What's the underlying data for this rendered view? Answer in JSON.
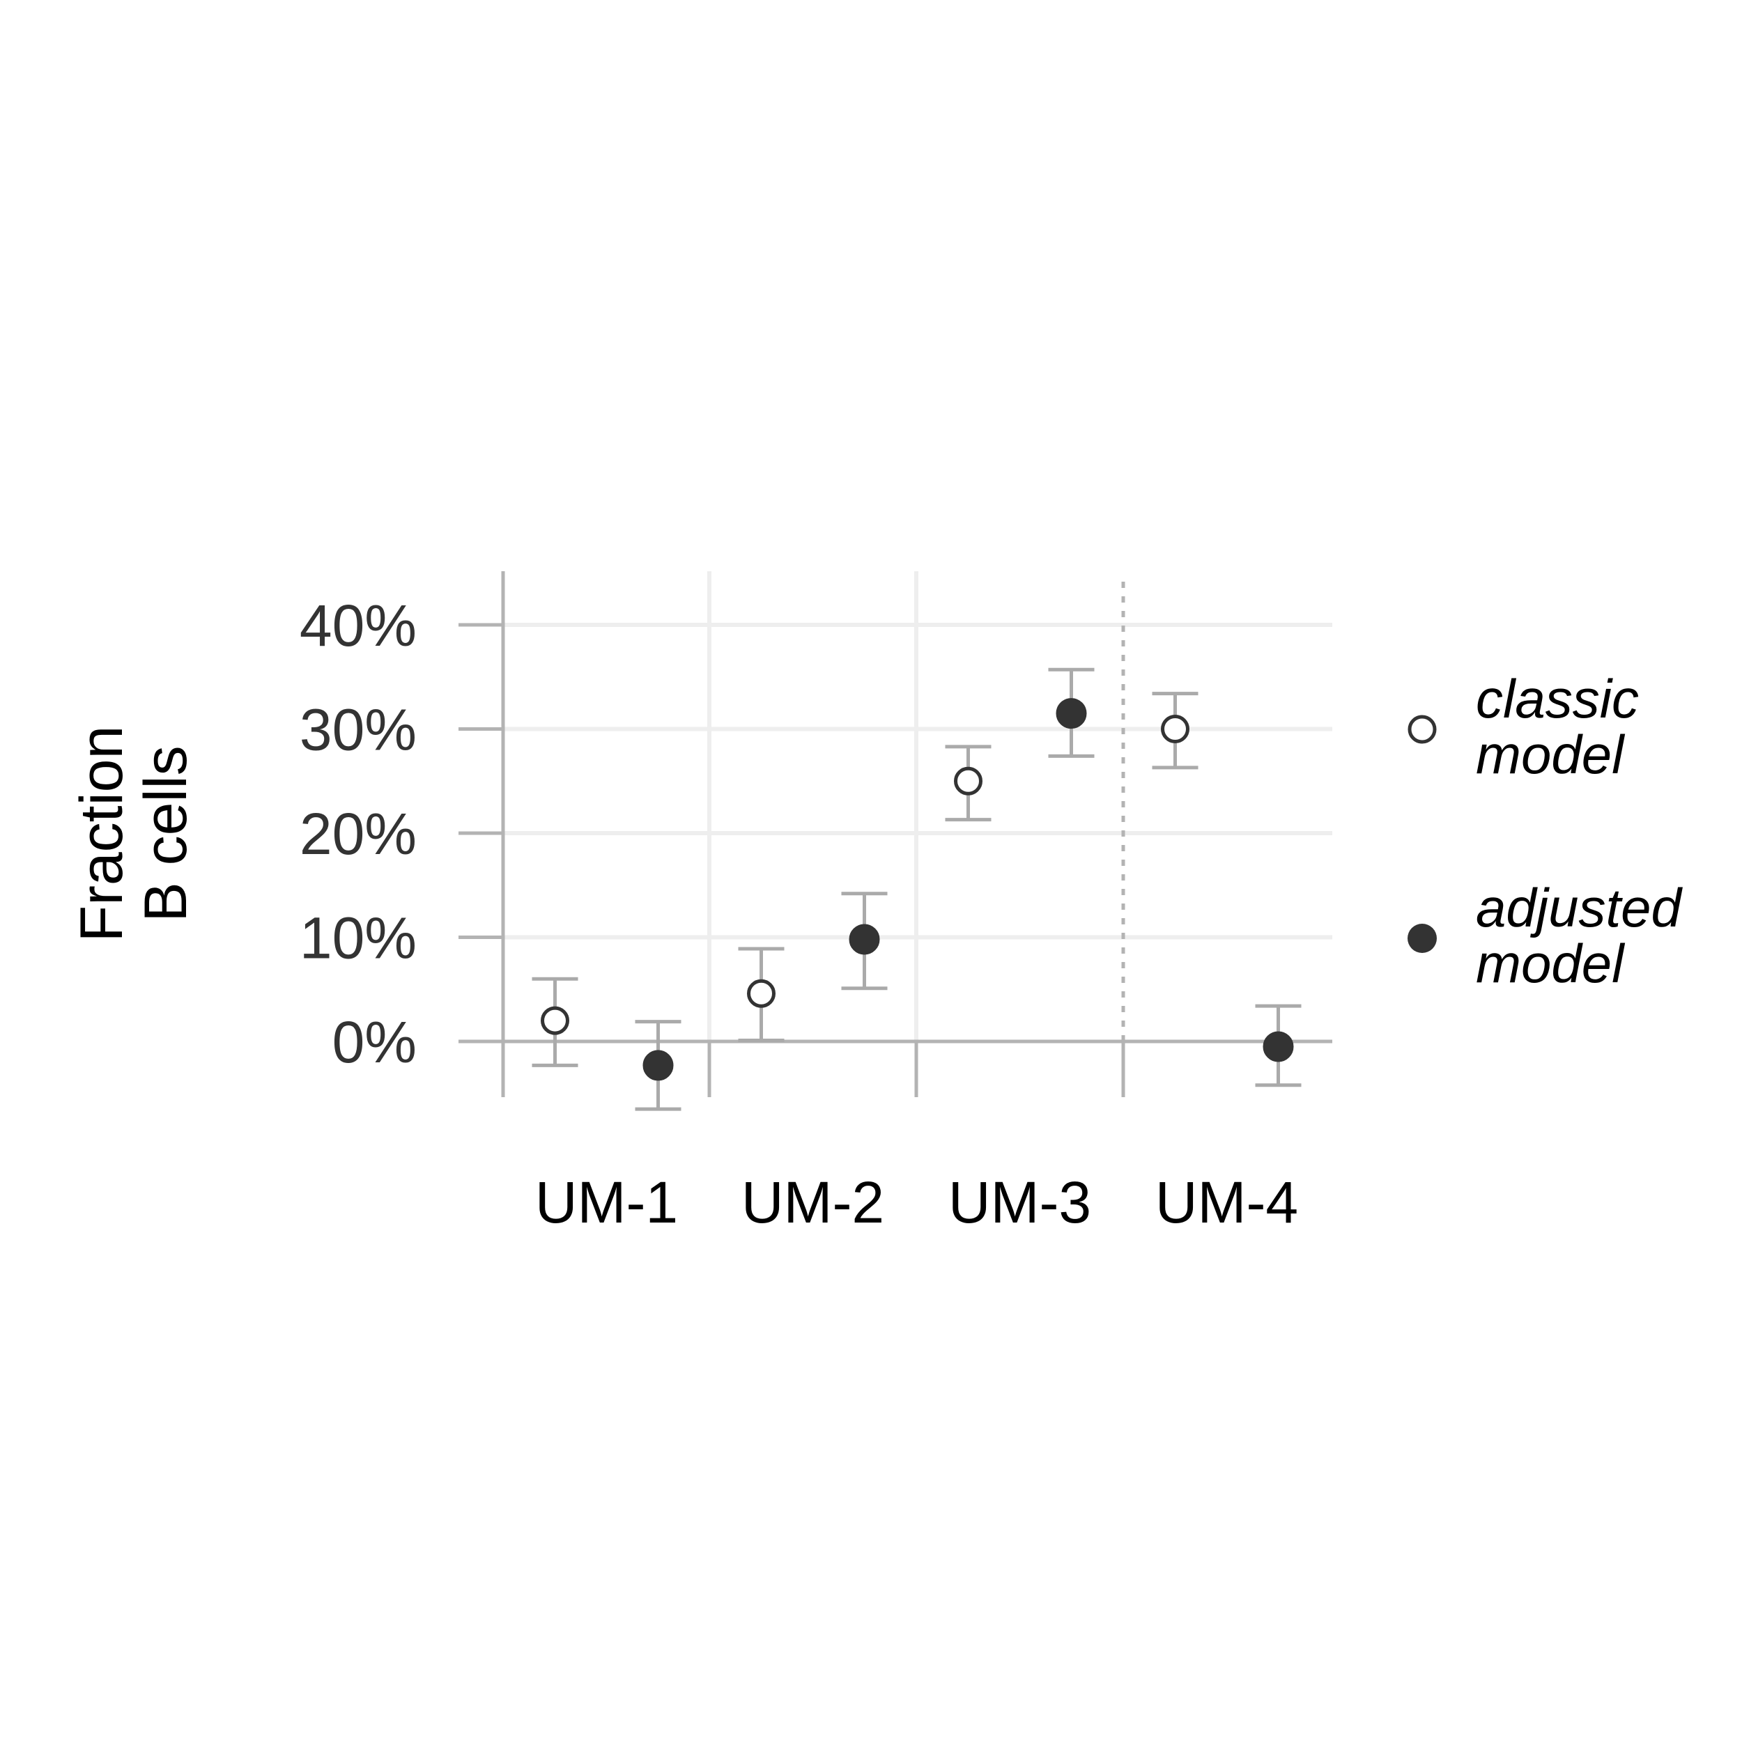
{
  "chart_data": {
    "type": "scatter",
    "ylabel_lines": [
      "Fraction",
      "B cells"
    ],
    "ylim": [
      -6,
      45
    ],
    "yticks": [
      0,
      10,
      20,
      30,
      40
    ],
    "ytick_labels": [
      "0%",
      "10%",
      "20%",
      "30%",
      "40%"
    ],
    "categories": [
      "UM-1",
      "UM-2",
      "UM-3",
      "UM-4"
    ],
    "grid": true,
    "dashed_separator_before": "UM-4",
    "legend_position": "right",
    "series": [
      {
        "name": "classic model",
        "legend_lines": [
          "classic",
          "model"
        ],
        "marker": "open-circle",
        "values": [
          2.0,
          4.6,
          25.0,
          30.0
        ],
        "err_low": [
          -2.3,
          0.1,
          21.3,
          26.3
        ],
        "err_high": [
          6.0,
          8.9,
          28.3,
          33.4
        ]
      },
      {
        "name": "adjusted model",
        "legend_lines": [
          "adjusted",
          "model"
        ],
        "marker": "filled-circle",
        "values": [
          -2.3,
          9.8,
          31.5,
          -0.5
        ],
        "err_low": [
          -6.5,
          5.1,
          27.4,
          -4.2
        ],
        "err_high": [
          1.9,
          14.2,
          35.7,
          3.4
        ]
      }
    ],
    "colors": {
      "point_fill_dark": "#333333",
      "point_stroke": "#333333",
      "errorbar": "#aaaaaa",
      "grid_major": "#eeeeee",
      "axis_line": "#b3b3b3",
      "separator": "#b3b3b3"
    }
  }
}
